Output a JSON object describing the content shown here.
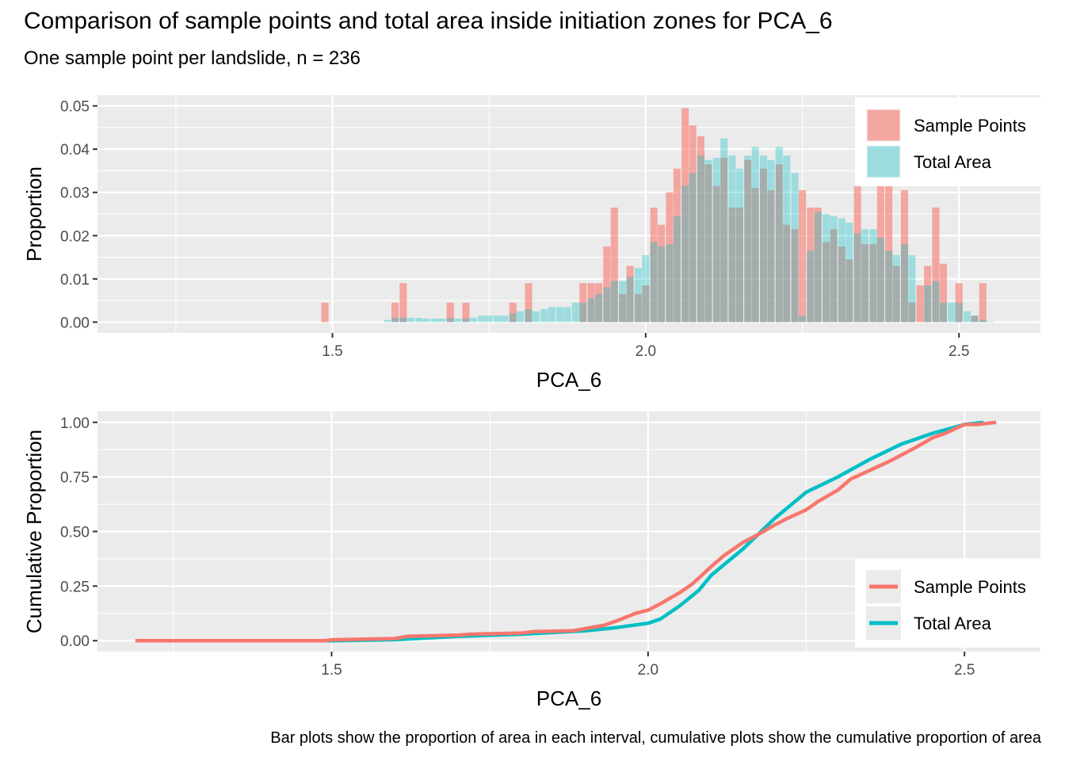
{
  "title": "Comparison of sample points and total area inside initiation zones for PCA_6",
  "subtitle": "One sample point per landslide, n = 236",
  "caption": "Bar plots show the proportion of area in each interval, cumulative plots show the cumulative proportion of area",
  "colors": {
    "sample": "#F8766D",
    "area": "#00BFC4",
    "panel": "#EBEBEB",
    "grid": "#FFFFFF"
  },
  "chart_data": [
    {
      "type": "bar",
      "xlabel": "PCA_6",
      "ylabel": "Proportion",
      "xlim": [
        1.125,
        2.63
      ],
      "ylim": [
        -0.0025,
        0.0525
      ],
      "xticks": [
        {
          "v": 1.5,
          "label": "1.5"
        },
        {
          "v": 2.0,
          "label": "2.0"
        },
        {
          "v": 2.5,
          "label": "2.5"
        }
      ],
      "yticks": [
        {
          "v": 0.0,
          "label": "0.00"
        },
        {
          "v": 0.01,
          "label": "0.01"
        },
        {
          "v": 0.02,
          "label": "0.02"
        },
        {
          "v": 0.03,
          "label": "0.03"
        },
        {
          "v": 0.04,
          "label": "0.04"
        },
        {
          "v": 0.05,
          "label": "0.05"
        }
      ],
      "legend": {
        "position": "top-right",
        "items": [
          "Sample Points",
          "Total Area"
        ]
      },
      "grid": true,
      "bin_width": 0.0125,
      "x": [
        1.488,
        1.588,
        1.6,
        1.613,
        1.625,
        1.638,
        1.65,
        1.663,
        1.675,
        1.688,
        1.7,
        1.713,
        1.725,
        1.738,
        1.75,
        1.763,
        1.775,
        1.788,
        1.8,
        1.813,
        1.825,
        1.838,
        1.85,
        1.863,
        1.875,
        1.888,
        1.9,
        1.913,
        1.925,
        1.938,
        1.95,
        1.963,
        1.975,
        1.988,
        2.0,
        2.013,
        2.025,
        2.038,
        2.05,
        2.063,
        2.075,
        2.088,
        2.1,
        2.113,
        2.125,
        2.138,
        2.15,
        2.163,
        2.175,
        2.188,
        2.2,
        2.213,
        2.225,
        2.238,
        2.25,
        2.263,
        2.275,
        2.288,
        2.3,
        2.313,
        2.325,
        2.338,
        2.35,
        2.363,
        2.375,
        2.388,
        2.4,
        2.413,
        2.425,
        2.438,
        2.45,
        2.463,
        2.475,
        2.488,
        2.5,
        2.513,
        2.525,
        2.538,
        2.55
      ],
      "series": [
        {
          "name": "Sample Points",
          "values": [
            0.0045,
            0.0,
            0.0045,
            0.009,
            0.0,
            0.0,
            0.0,
            0.0,
            0.0,
            0.0045,
            0.0,
            0.0045,
            0.0,
            0.0,
            0.0,
            0.0,
            0.0,
            0.0045,
            0.0,
            0.009,
            0.0,
            0.0,
            0.0,
            0.0,
            0.0,
            0.0,
            0.009,
            0.009,
            0.009,
            0.0175,
            0.0265,
            0.0065,
            0.013,
            0.0065,
            0.0085,
            0.0265,
            0.0225,
            0.03,
            0.0355,
            0.0495,
            0.0455,
            0.043,
            0.0365,
            0.0315,
            0.038,
            0.0265,
            0.0265,
            0.0375,
            0.031,
            0.0355,
            0.0305,
            0.0365,
            0.0225,
            0.0215,
            0.0305,
            0.0265,
            0.0265,
            0.0185,
            0.0215,
            0.0175,
            0.0145,
            0.0315,
            0.018,
            0.018,
            0.0315,
            0.0315,
            0.013,
            0.0305,
            0.0045,
            0.0085,
            0.013,
            0.0265,
            0.0135,
            0.0,
            0.009,
            0.0,
            0.0015,
            0.009,
            0.0
          ]
        },
        {
          "name": "Total Area",
          "values": [
            0.0,
            0.0005,
            0.001,
            0.001,
            0.001,
            0.001,
            0.0008,
            0.0008,
            0.0008,
            0.001,
            0.0008,
            0.0008,
            0.001,
            0.0015,
            0.0015,
            0.0015,
            0.0015,
            0.002,
            0.0025,
            0.003,
            0.0025,
            0.003,
            0.0035,
            0.0035,
            0.0035,
            0.0045,
            0.0045,
            0.0055,
            0.0065,
            0.008,
            0.0095,
            0.0095,
            0.0105,
            0.0125,
            0.0155,
            0.0185,
            0.0175,
            0.018,
            0.0245,
            0.0315,
            0.0345,
            0.0385,
            0.0375,
            0.038,
            0.0425,
            0.0385,
            0.0355,
            0.0385,
            0.0405,
            0.0385,
            0.0375,
            0.0405,
            0.0385,
            0.0345,
            0.0015,
            0.0165,
            0.0255,
            0.025,
            0.0245,
            0.024,
            0.023,
            0.0205,
            0.0215,
            0.0215,
            0.0195,
            0.0165,
            0.0155,
            0.018,
            0.0155,
            0.0,
            0.0085,
            0.0095,
            0.0045,
            0.0045,
            0.0045,
            0.0025,
            0.0015,
            0.0005,
            0.0002
          ]
        }
      ]
    },
    {
      "type": "line",
      "xlabel": "PCA_6",
      "ylabel": "Cumulative Proportion",
      "xlim": [
        1.13,
        2.62
      ],
      "ylim": [
        -0.05,
        1.05
      ],
      "xticks": [
        {
          "v": 1.5,
          "label": "1.5"
        },
        {
          "v": 2.0,
          "label": "2.0"
        },
        {
          "v": 2.5,
          "label": "2.5"
        }
      ],
      "yticks": [
        {
          "v": 0.0,
          "label": "0.00"
        },
        {
          "v": 0.25,
          "label": "0.25"
        },
        {
          "v": 0.5,
          "label": "0.50"
        },
        {
          "v": 0.75,
          "label": "0.75"
        },
        {
          "v": 1.0,
          "label": "1.00"
        }
      ],
      "legend": {
        "position": "bottom-right",
        "items": [
          "Sample Points",
          "Total Area"
        ]
      },
      "grid": true,
      "series": [
        {
          "name": "Sample Points",
          "x": [
            1.19,
            1.49,
            1.5,
            1.6,
            1.62,
            1.7,
            1.72,
            1.8,
            1.82,
            1.88,
            1.9,
            1.93,
            1.95,
            1.98,
            2.0,
            2.02,
            2.05,
            2.07,
            2.1,
            2.12,
            2.15,
            2.17,
            2.2,
            2.22,
            2.25,
            2.27,
            2.3,
            2.32,
            2.35,
            2.38,
            2.4,
            2.42,
            2.45,
            2.47,
            2.5,
            2.52,
            2.55
          ],
          "y": [
            0.0,
            0.0,
            0.004,
            0.01,
            0.02,
            0.025,
            0.03,
            0.035,
            0.042,
            0.045,
            0.055,
            0.07,
            0.09,
            0.125,
            0.14,
            0.17,
            0.22,
            0.26,
            0.34,
            0.39,
            0.45,
            0.48,
            0.53,
            0.56,
            0.6,
            0.64,
            0.69,
            0.74,
            0.78,
            0.82,
            0.85,
            0.88,
            0.93,
            0.95,
            0.99,
            0.99,
            1.0
          ]
        },
        {
          "name": "Total Area",
          "x": [
            1.19,
            1.5,
            1.6,
            1.7,
            1.8,
            1.9,
            1.95,
            2.0,
            2.02,
            2.05,
            2.08,
            2.1,
            2.15,
            2.2,
            2.25,
            2.3,
            2.35,
            2.4,
            2.45,
            2.5,
            2.53
          ],
          "y": [
            0.0,
            0.0,
            0.005,
            0.02,
            0.03,
            0.045,
            0.06,
            0.08,
            0.1,
            0.16,
            0.23,
            0.3,
            0.42,
            0.56,
            0.68,
            0.75,
            0.83,
            0.9,
            0.95,
            0.99,
            1.0
          ]
        }
      ]
    }
  ]
}
